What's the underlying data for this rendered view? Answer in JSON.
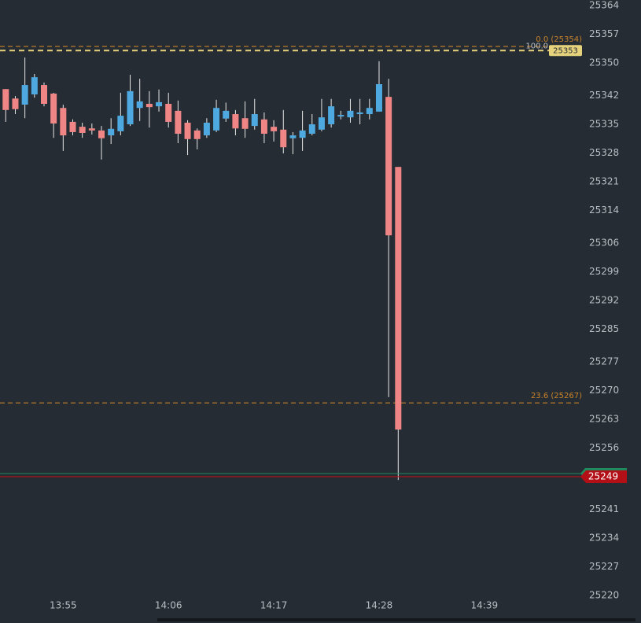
{
  "chart_data": {
    "type": "candlestick",
    "x": [
      829,
      830,
      831,
      832,
      833,
      834,
      835,
      836,
      837,
      838,
      839,
      840,
      841,
      842,
      843,
      844,
      845,
      846,
      847,
      848,
      849,
      850,
      851,
      852,
      853,
      854,
      855,
      856,
      857,
      858,
      859,
      860,
      861,
      862,
      863,
      864,
      865,
      866,
      867,
      868,
      869,
      870
    ],
    "open": [
      25343.6,
      25341.3,
      25339.8,
      25342.3,
      25344.6,
      25342.5,
      25339.0,
      25335.6,
      25334.4,
      25334.0,
      25333.5,
      25332.3,
      25333.3,
      25335.0,
      25339.0,
      25340.0,
      25339.4,
      25340.0,
      25338.3,
      25335.4,
      25333.5,
      25332.3,
      25333.5,
      25336.4,
      25337.5,
      25336.5,
      25334.6,
      25336.2,
      25334.4,
      25333.7,
      25331.6,
      25331.7,
      25332.7,
      25333.7,
      25335.0,
      25336.9,
      25336.7,
      25337.5,
      25337.5,
      25338.1,
      25341.7,
      25324.6
    ],
    "high": [
      25343.6,
      25341.9,
      25351.3,
      25347.3,
      25345.2,
      25342.7,
      25339.8,
      25336.2,
      25335.4,
      25335.2,
      25334.6,
      25336.5,
      25342.7,
      25347.1,
      25346.1,
      25343.1,
      25343.5,
      25342.7,
      25340.8,
      25336.0,
      25334.0,
      25336.5,
      25341.0,
      25340.3,
      25338.5,
      25340.6,
      25341.2,
      25337.9,
      25336.0,
      25338.5,
      25333.1,
      25338.3,
      25337.5,
      25341.2,
      25341.2,
      25338.3,
      25341.2,
      25341.2,
      25341.2,
      25350.4,
      25346.1,
      25324.6
    ],
    "low": [
      25335.6,
      25337.5,
      25336.5,
      25341.5,
      25339.4,
      25331.7,
      25328.5,
      25332.3,
      25331.7,
      25332.5,
      25326.4,
      25330.2,
      25332.3,
      25334.6,
      25335.8,
      25334.2,
      25338.1,
      25334.2,
      25330.4,
      25327.5,
      25328.9,
      25331.7,
      25333.1,
      25335.6,
      25332.3,
      25331.7,
      25333.7,
      25330.4,
      25330.8,
      25327.9,
      25327.7,
      25328.5,
      25332.3,
      25333.3,
      25334.2,
      25336.2,
      25335.4,
      25335.0,
      25336.2,
      25338.1,
      25268.4,
      25248.2
    ],
    "close": [
      25338.5,
      25338.7,
      25344.6,
      25346.5,
      25340.0,
      25335.2,
      25332.3,
      25333.1,
      25332.9,
      25333.5,
      25331.6,
      25333.9,
      25337.1,
      25343.1,
      25340.6,
      25339.2,
      25340.4,
      25335.6,
      25332.7,
      25331.4,
      25331.4,
      25335.4,
      25339.0,
      25338.3,
      25334.0,
      25333.9,
      25337.5,
      25332.7,
      25333.3,
      25329.4,
      25332.3,
      25333.5,
      25335.0,
      25336.7,
      25339.4,
      25337.3,
      25338.3,
      25337.9,
      25339.0,
      25344.8,
      25307.9,
      25260.5
    ],
    "up_color": "#4ea9e0",
    "down_color": "#f08585",
    "xlim": [
      828.4,
      889.2
    ],
    "xticks": [
      {
        "value": 835,
        "label": "13:55"
      },
      {
        "value": 846,
        "label": "14:06"
      },
      {
        "value": 857,
        "label": "14:17"
      },
      {
        "value": 868,
        "label": "14:28"
      },
      {
        "value": 879,
        "label": "14:39"
      }
    ],
    "ylim": [
      25220,
      25364
    ],
    "yticks": [
      25364,
      25357,
      25350,
      25342,
      25335,
      25328,
      25321,
      25314,
      25306,
      25299,
      25292,
      25285,
      25277,
      25270,
      25263,
      25256,
      25241,
      25234,
      25227,
      25220
    ],
    "fib_levels": [
      {
        "label": "0.0 (25354)",
        "value": 25354
      },
      {
        "label": "23.6 (25267)",
        "value": 25267
      }
    ],
    "fib_color": "#c8822a",
    "range_line": {
      "label": "100.0",
      "value": 25353,
      "color": "#e6d27c"
    },
    "last_price": {
      "value": 25249,
      "color": "#b30f16"
    }
  }
}
